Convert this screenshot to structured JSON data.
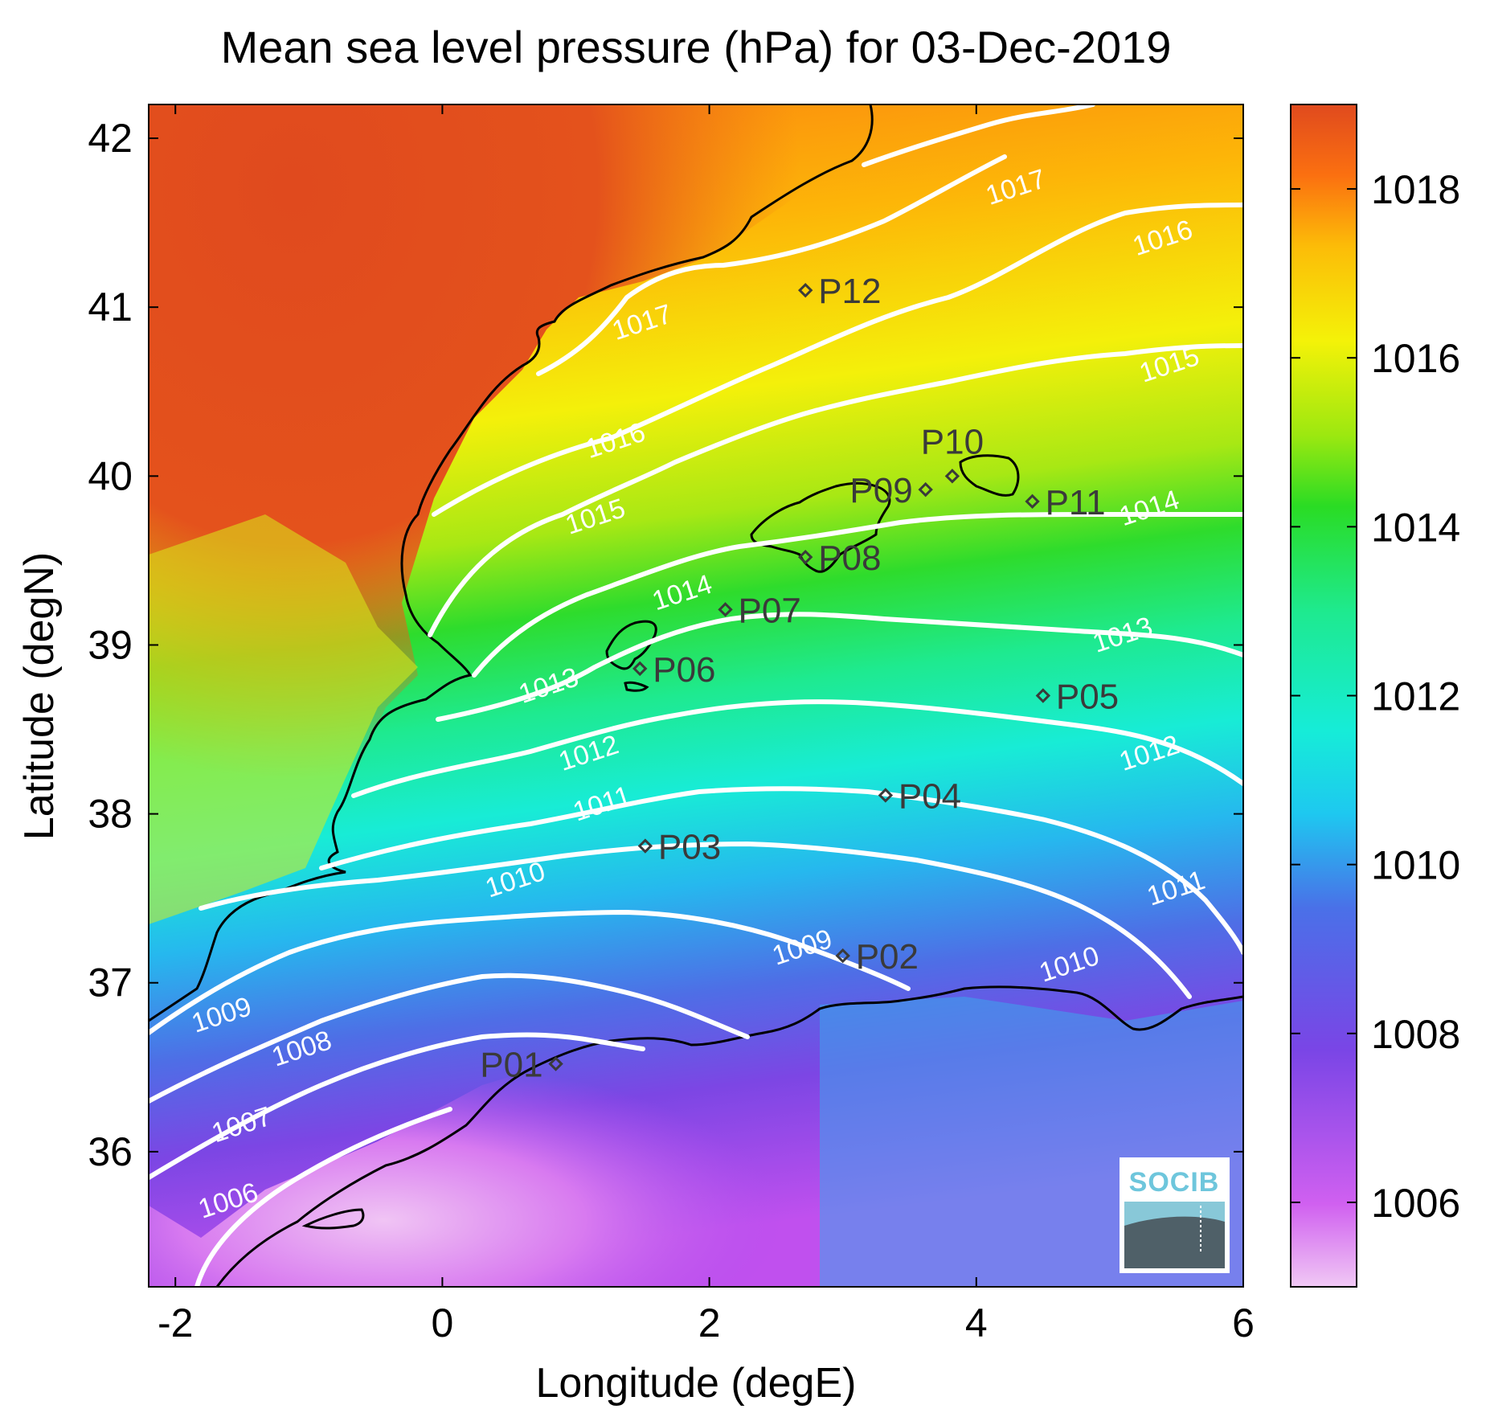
{
  "title": "Mean sea level pressure (hPa) for 03-Dec-2019",
  "xlabel": "Longitude (degE)",
  "ylabel": "Latitude (degN)",
  "xlim": [
    -2.2,
    6.0
  ],
  "ylim": [
    35.2,
    42.2
  ],
  "xticks": [
    -2,
    0,
    2,
    4,
    6
  ],
  "yticks": [
    36,
    37,
    38,
    39,
    40,
    41,
    42
  ],
  "colorbar": {
    "range": [
      1005,
      1019
    ],
    "ticks": [
      1006,
      1008,
      1010,
      1012,
      1014,
      1016,
      1018
    ],
    "colormap": "jet-like (light violet low to dark orange-red high)"
  },
  "logo_text": "SOCIB",
  "contours": [
    {
      "level": "1017",
      "labels": [
        {
          "text": "1017",
          "lon": 1.5,
          "lat": 40.9
        },
        {
          "text": "1017",
          "lon": 4.3,
          "lat": 41.7
        }
      ]
    },
    {
      "level": "1016",
      "labels": [
        {
          "text": "1016",
          "lon": 1.3,
          "lat": 40.2
        },
        {
          "text": "1016",
          "lon": 5.4,
          "lat": 41.4
        }
      ]
    },
    {
      "level": "1015",
      "labels": [
        {
          "text": "1015",
          "lon": 1.15,
          "lat": 39.75
        },
        {
          "text": "1015",
          "lon": 5.45,
          "lat": 40.65
        }
      ]
    },
    {
      "level": "1014",
      "labels": [
        {
          "text": "1014",
          "lon": 1.8,
          "lat": 39.3
        },
        {
          "text": "1014",
          "lon": 5.3,
          "lat": 39.8
        }
      ]
    },
    {
      "level": "1013",
      "labels": [
        {
          "text": "1013",
          "lon": 0.8,
          "lat": 38.75
        },
        {
          "text": "1013",
          "lon": 5.1,
          "lat": 39.05
        }
      ]
    },
    {
      "level": "1012",
      "labels": [
        {
          "text": "1012",
          "lon": 1.1,
          "lat": 38.35
        },
        {
          "text": "1012",
          "lon": 5.3,
          "lat": 38.35
        }
      ]
    },
    {
      "level": "1011",
      "labels": [
        {
          "text": "1011",
          "lon": 1.2,
          "lat": 38.05
        },
        {
          "text": "1011",
          "lon": 5.5,
          "lat": 37.55
        }
      ]
    },
    {
      "level": "1010",
      "labels": [
        {
          "text": "1010",
          "lon": 0.55,
          "lat": 37.6
        },
        {
          "text": "1010",
          "lon": 4.7,
          "lat": 37.1
        }
      ]
    },
    {
      "level": "1009",
      "labels": [
        {
          "text": "1009",
          "lon": -1.65,
          "lat": 36.8
        },
        {
          "text": "1009",
          "lon": 2.7,
          "lat": 37.2
        }
      ]
    },
    {
      "level": "1008",
      "labels": [
        {
          "text": "1008",
          "lon": -1.05,
          "lat": 36.6
        }
      ]
    },
    {
      "level": "1007",
      "labels": [
        {
          "text": "1007",
          "lon": -1.5,
          "lat": 36.15
        }
      ]
    },
    {
      "level": "1006",
      "labels": [
        {
          "text": "1006",
          "lon": -1.6,
          "lat": 35.7
        }
      ]
    }
  ],
  "stations": [
    {
      "id": "P01",
      "lon": 0.85,
      "lat": 36.52,
      "label_side": "left"
    },
    {
      "id": "P02",
      "lon": 3.0,
      "lat": 37.16,
      "label_side": "right"
    },
    {
      "id": "P03",
      "lon": 1.52,
      "lat": 37.81,
      "label_side": "right"
    },
    {
      "id": "P04",
      "lon": 3.32,
      "lat": 38.11,
      "label_side": "right"
    },
    {
      "id": "P05",
      "lon": 4.5,
      "lat": 38.7,
      "label_side": "right"
    },
    {
      "id": "P06",
      "lon": 1.48,
      "lat": 38.86,
      "label_side": "right"
    },
    {
      "id": "P07",
      "lon": 2.12,
      "lat": 39.21,
      "label_side": "right"
    },
    {
      "id": "P08",
      "lon": 2.72,
      "lat": 39.52,
      "label_side": "right"
    },
    {
      "id": "P09",
      "lon": 3.62,
      "lat": 39.92,
      "label_side": "left"
    },
    {
      "id": "P10",
      "lon": 3.82,
      "lat": 40.0,
      "label_side": "above"
    },
    {
      "id": "P11",
      "lon": 4.42,
      "lat": 39.85,
      "label_side": "right"
    },
    {
      "id": "P12",
      "lon": 2.72,
      "lat": 41.1,
      "label_side": "right"
    }
  ]
}
